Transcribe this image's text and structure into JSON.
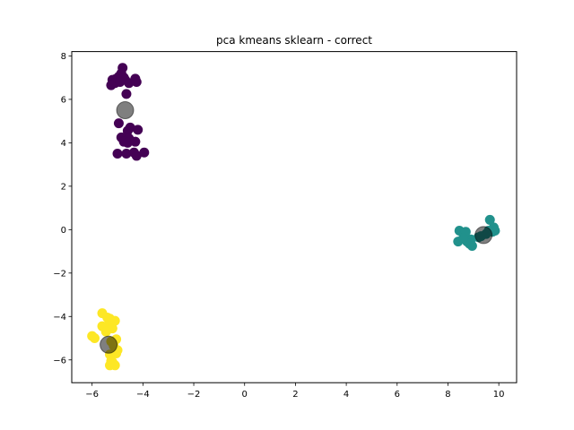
{
  "chart_data": {
    "type": "scatter",
    "title": "pca kmeans sklearn - correct",
    "xlabel": "",
    "ylabel": "",
    "xlim": [
      -6.8,
      10.7
    ],
    "ylim": [
      -7.05,
      8.2
    ],
    "xticks": [
      -6,
      -4,
      -2,
      0,
      2,
      4,
      6,
      8,
      10
    ],
    "yticks": [
      -6,
      -4,
      -2,
      0,
      2,
      4,
      6,
      8
    ],
    "xtick_labels": [
      "−6",
      "−4",
      "−2",
      "0",
      "2",
      "4",
      "6",
      "8",
      "10"
    ],
    "ytick_labels": [
      "−6",
      "−4",
      "−2",
      "0",
      "2",
      "4",
      "6",
      "8"
    ],
    "grid": false,
    "legend": "none",
    "series": [
      {
        "color": "#440154",
        "points": [
          [
            -4.8,
            7.45
          ],
          [
            -4.85,
            7.2
          ],
          [
            -4.95,
            7.05
          ],
          [
            -4.75,
            7.0
          ],
          [
            -5.05,
            6.95
          ],
          [
            -5.2,
            6.9
          ],
          [
            -4.7,
            6.9
          ],
          [
            -4.3,
            6.95
          ],
          [
            -5.1,
            6.75
          ],
          [
            -4.9,
            6.8
          ],
          [
            -4.55,
            6.75
          ],
          [
            -5.25,
            6.65
          ],
          [
            -4.25,
            6.8
          ],
          [
            -4.65,
            6.25
          ],
          [
            -4.95,
            4.9
          ],
          [
            -4.5,
            4.7
          ],
          [
            -4.6,
            4.55
          ],
          [
            -4.2,
            4.6
          ],
          [
            -4.85,
            4.25
          ],
          [
            -4.7,
            4.25
          ],
          [
            -4.55,
            4.2
          ],
          [
            -4.75,
            4.05
          ],
          [
            -4.6,
            4.0
          ],
          [
            -4.3,
            4.05
          ],
          [
            -5.0,
            3.5
          ],
          [
            -4.65,
            3.5
          ],
          [
            -4.35,
            3.55
          ],
          [
            -4.25,
            3.4
          ],
          [
            -3.95,
            3.55
          ]
        ]
      },
      {
        "color": "#21918c",
        "points": [
          [
            9.65,
            0.45
          ],
          [
            9.8,
            0.1
          ],
          [
            9.75,
            0.0
          ],
          [
            9.85,
            -0.05
          ],
          [
            9.75,
            -0.1
          ],
          [
            9.6,
            -0.05
          ],
          [
            9.5,
            -0.2
          ],
          [
            9.3,
            -0.3
          ],
          [
            9.2,
            -0.35
          ],
          [
            8.9,
            -0.45
          ],
          [
            8.75,
            -0.55
          ],
          [
            8.85,
            -0.65
          ],
          [
            8.95,
            -0.75
          ],
          [
            8.45,
            -0.05
          ],
          [
            8.7,
            -0.1
          ],
          [
            8.4,
            -0.55
          ],
          [
            8.6,
            -0.4
          ]
        ]
      },
      {
        "color": "#fde725",
        "points": [
          [
            -5.6,
            -3.85
          ],
          [
            -5.4,
            -4.05
          ],
          [
            -5.3,
            -4.1
          ],
          [
            -5.1,
            -4.2
          ],
          [
            -5.6,
            -4.45
          ],
          [
            -5.35,
            -4.4
          ],
          [
            -5.2,
            -4.55
          ],
          [
            -5.45,
            -4.7
          ],
          [
            -6.0,
            -4.9
          ],
          [
            -5.9,
            -5.0
          ],
          [
            -5.05,
            -5.05
          ],
          [
            -5.25,
            -5.15
          ],
          [
            -5.15,
            -5.35
          ],
          [
            -5.0,
            -5.55
          ],
          [
            -5.05,
            -5.7
          ],
          [
            -5.3,
            -5.75
          ],
          [
            -5.25,
            -6.05
          ],
          [
            -5.3,
            -6.25
          ],
          [
            -5.1,
            -6.25
          ],
          [
            -5.2,
            -6.1
          ]
        ]
      }
    ],
    "centroids": {
      "color": "#000000",
      "opacity": 0.5,
      "points": [
        [
          -4.7,
          5.5
        ],
        [
          9.4,
          -0.25
        ],
        [
          -5.35,
          -5.3
        ]
      ]
    }
  }
}
